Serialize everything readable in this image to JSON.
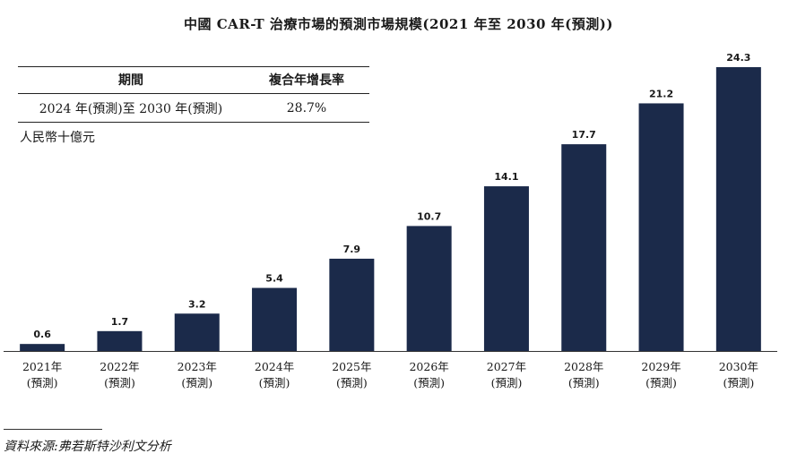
{
  "chart_data": {
    "type": "bar",
    "title": "中國 CAR-T 治療市場的預測市場規模(2021 年至 2030 年(預測))",
    "unit_label": "人民幣十億元",
    "categories": [
      [
        "2021年",
        "(預測)"
      ],
      [
        "2022年",
        "(預測)"
      ],
      [
        "2023年",
        "(預測)"
      ],
      [
        "2024年",
        "(預測)"
      ],
      [
        "2025年",
        "(預測)"
      ],
      [
        "2026年",
        "(預測)"
      ],
      [
        "2027年",
        "(預測)"
      ],
      [
        "2028年",
        "(預測)"
      ],
      [
        "2029年",
        "(預測)"
      ],
      [
        "2030年",
        "(預測)"
      ]
    ],
    "values": [
      0.6,
      1.7,
      3.2,
      5.4,
      7.9,
      10.7,
      14.1,
      17.7,
      21.2,
      24.3
    ],
    "value_labels": [
      "0.6",
      "1.7",
      "3.2",
      "5.4",
      "7.9",
      "10.7",
      "14.1",
      "17.7",
      "21.2",
      "24.3"
    ],
    "ylim": [
      0,
      24.3
    ],
    "bar_color": "#1b2a4a",
    "grid": false,
    "xlabel": "",
    "ylabel": ""
  },
  "cagr_table": {
    "headers": [
      "期間",
      "複合年增長率"
    ],
    "rows": [
      [
        "2024 年(預測)至 2030 年(預測)",
        "28.7%"
      ]
    ]
  },
  "source": "資料來源:弗若斯特沙利文分析"
}
